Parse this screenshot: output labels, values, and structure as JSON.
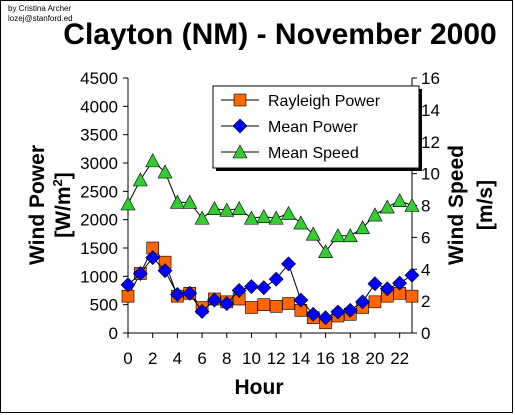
{
  "credit": {
    "line1": "by Cristina Archer",
    "line2": "lozej@stanford.ed"
  },
  "chart_data": {
    "type": "line",
    "title": "Clayton (NM) - November 2000",
    "xlabel": "Hour",
    "ylabel_left": "Wind Power [W/m2]",
    "ylabel_left_main": "Wind Power",
    "ylabel_left_unit_prefix": "[W/m",
    "ylabel_left_unit_sup": "2",
    "ylabel_left_unit_suffix": "]",
    "ylabel_right": "Wind Speed [m/s]",
    "ylabel_right_main": "Wind Speed",
    "ylabel_right_unit": "[m/s]",
    "x": [
      0,
      1,
      2,
      3,
      4,
      5,
      6,
      7,
      8,
      9,
      10,
      11,
      12,
      13,
      14,
      15,
      16,
      17,
      18,
      19,
      20,
      21,
      22,
      23
    ],
    "xticks": [
      0,
      2,
      4,
      6,
      8,
      10,
      12,
      14,
      16,
      18,
      20,
      22
    ],
    "xlim": [
      0,
      23
    ],
    "ylim_left": [
      0,
      4500
    ],
    "yticks_left": [
      0,
      500,
      1000,
      1500,
      2000,
      2500,
      3000,
      3500,
      4000,
      4500
    ],
    "ylim_right": [
      0,
      16
    ],
    "yticks_right": [
      0,
      2,
      4,
      6,
      8,
      10,
      12,
      14,
      16
    ],
    "legend_position": "top-right",
    "series": [
      {
        "name": "Rayleigh Power",
        "axis": "left",
        "marker": "square",
        "color": "#ff6600",
        "values": [
          650,
          1050,
          1500,
          1250,
          650,
          700,
          450,
          600,
          550,
          600,
          450,
          500,
          470,
          520,
          400,
          270,
          180,
          300,
          330,
          450,
          550,
          650,
          700,
          650
        ]
      },
      {
        "name": "Mean Power",
        "axis": "left",
        "marker": "diamond",
        "color": "#0000ff",
        "values": [
          850,
          1050,
          1330,
          1100,
          680,
          700,
          380,
          580,
          520,
          750,
          820,
          800,
          950,
          1220,
          580,
          330,
          270,
          370,
          400,
          550,
          870,
          780,
          880,
          1020
        ]
      },
      {
        "name": "Mean Speed",
        "axis": "right",
        "marker": "triangle",
        "color": "#33cc33",
        "values": [
          8.1,
          9.6,
          10.8,
          10.1,
          8.2,
          8.2,
          7.2,
          7.8,
          7.7,
          7.8,
          7.2,
          7.3,
          7.2,
          7.5,
          6.9,
          6.2,
          5.1,
          6.1,
          6.1,
          6.6,
          7.4,
          7.9,
          8.3,
          8.0
        ]
      }
    ]
  }
}
